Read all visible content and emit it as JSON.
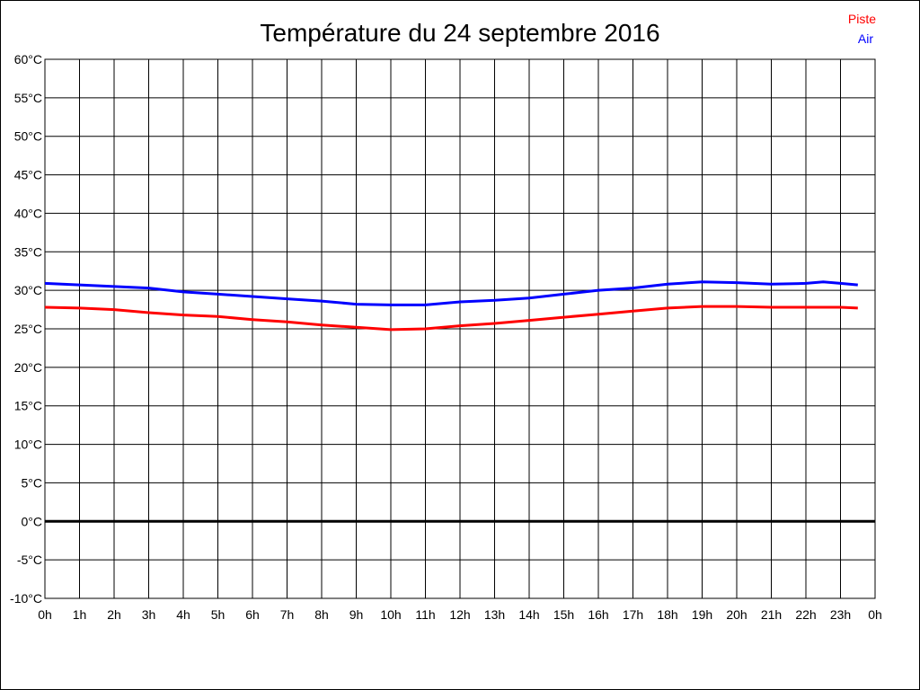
{
  "chart_data": {
    "type": "line",
    "title": "Température du 24 septembre 2016",
    "xlim": [
      0,
      24
    ],
    "ylim": [
      -10,
      60
    ],
    "grid": true,
    "legend_placement": "top-right",
    "x_tick_labels": [
      "0h",
      "1h",
      "2h",
      "3h",
      "4h",
      "5h",
      "6h",
      "7h",
      "8h",
      "9h",
      "10h",
      "11h",
      "12h",
      "13h",
      "14h",
      "15h",
      "16h",
      "17h",
      "18h",
      "19h",
      "20h",
      "21h",
      "22h",
      "23h",
      "0h"
    ],
    "y_ticks": [
      60,
      55,
      50,
      45,
      40,
      35,
      30,
      25,
      20,
      15,
      10,
      5,
      0,
      -5,
      -10
    ],
    "y_tick_labels": [
      "60°C",
      "55°C",
      "50°C",
      "45°C",
      "40°C",
      "35°C",
      "30°C",
      "25°C",
      "20°C",
      "15°C",
      "10°C",
      "5°C",
      "0°C",
      "-5°C",
      "-10°C"
    ],
    "x": [
      0,
      1,
      2,
      3,
      4,
      5,
      6,
      7,
      8,
      9,
      10,
      11,
      12,
      13,
      14,
      15,
      16,
      17,
      18,
      19,
      20,
      21,
      22,
      22.5,
      23,
      23.5
    ],
    "series": [
      {
        "name": "Piste",
        "color": "#ff0000",
        "values": [
          27.8,
          27.7,
          27.5,
          27.1,
          26.8,
          26.6,
          26.2,
          25.9,
          25.5,
          25.2,
          24.9,
          25.0,
          25.4,
          25.7,
          26.1,
          26.5,
          26.9,
          27.3,
          27.7,
          27.9,
          27.9,
          27.8,
          27.8,
          27.8,
          27.8,
          27.7
        ]
      },
      {
        "name": "Air",
        "color": "#0000ff",
        "values": [
          30.9,
          30.7,
          30.5,
          30.3,
          29.8,
          29.5,
          29.2,
          28.9,
          28.6,
          28.2,
          28.1,
          28.1,
          28.5,
          28.7,
          29.0,
          29.5,
          30.0,
          30.3,
          30.8,
          31.1,
          31.0,
          30.8,
          30.9,
          31.1,
          30.9,
          30.7
        ]
      }
    ]
  }
}
